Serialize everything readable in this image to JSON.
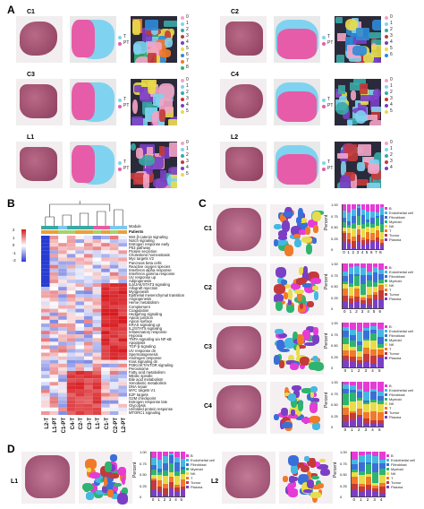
{
  "panels": {
    "A": "A",
    "B": "B",
    "C": "C",
    "D": "D"
  },
  "sampleA": [
    {
      "id": "C1",
      "legend": [
        "0",
        "1",
        "2",
        "3",
        "4",
        "5",
        "6",
        "7",
        "8"
      ]
    },
    {
      "id": "C2",
      "legend": [
        "0",
        "1",
        "2",
        "3",
        "4",
        "5",
        "6"
      ]
    },
    {
      "id": "C3",
      "legend": [
        "0",
        "1",
        "2",
        "3",
        "4",
        "5"
      ]
    },
    {
      "id": "C4",
      "legend": [
        "0",
        "1",
        "2",
        "3",
        "4",
        "5"
      ]
    },
    {
      "id": "L1",
      "legend": [
        "0",
        "1",
        "2",
        "3",
        "4",
        "5"
      ]
    },
    {
      "id": "L2",
      "legend": [
        "0",
        "1",
        "2",
        "3",
        "4"
      ]
    }
  ],
  "tpt": {
    "t": "T",
    "pt": "PT"
  },
  "heatmap": {
    "legend_module": "Module",
    "legend_patients": "Patients",
    "scale": [
      "2",
      "1",
      "0",
      "-1",
      "-2"
    ],
    "columns": [
      "L2-T",
      "L1-PT",
      "C1-PT",
      "C4-T",
      "C2-T",
      "C3-T",
      "L1-T",
      "C1-T",
      "C2-PT",
      "L2-PT"
    ],
    "rows": [
      "Wnt β-catenin signaling",
      "Notch signaling",
      "Estrogen response early",
      "P53 pathway",
      "Protein secretion",
      "Cholesterol homeostasis",
      "Myc targets V2",
      "Pancreas beta cells",
      "Reactive oxygen species",
      "Interferon alpha response",
      "Interferon gamma response",
      "UV response up",
      "Adipogenesis",
      "IL6/JAK/STAT3 signaling",
      "Allograft rejection",
      "Myogenesis",
      "Epithelial mesenchymal transition",
      "Angiogenesis",
      "Heme metabolism",
      "Complement",
      "Coagulation",
      "Hedgehog signaling",
      "Apical junction",
      "Apical surface",
      "KRAS signaling up",
      "IL2/STAT5 signaling",
      "Inflammatory response",
      "Hypoxia",
      "TNFA signaling via NF-κB",
      "Apoptosis",
      "TGF-β signaling",
      "UV response dn",
      "Spermatogenesis",
      "Androgen response",
      "Kras signaling dn",
      "PI3K/AKT/mTOR signaling",
      "Peroxisome",
      "Fatty acid metabolism",
      "Mitotic spindle",
      "Bile acid metabolism",
      "Xenobiotic metabolism",
      "DNA repair",
      "MYC targets V1",
      "E2F targets",
      "G2M checkpoint",
      "Estrogen response late",
      "Glycolysis",
      "Unfolded protein response",
      "MTORC1 signaling"
    ]
  },
  "cellLegend": [
    "B",
    "Endothelial cell",
    "Fibroblast",
    "Myeloid",
    "NK",
    "T",
    "Tumor",
    "Plasma"
  ],
  "cellColors": [
    "#e63bd6",
    "#45b7e3",
    "#3a6fd8",
    "#2eb46f",
    "#e8dc4a",
    "#f07a2a",
    "#c43a3a",
    "#7a3fc4"
  ],
  "percentLabel": "Percent",
  "panelC": [
    {
      "id": "C1",
      "x": [
        "0",
        "1",
        "2",
        "3",
        "4",
        "5",
        "6",
        "7",
        "8"
      ]
    },
    {
      "id": "C2",
      "x": [
        "0",
        "1",
        "2",
        "3",
        "4",
        "5",
        "6"
      ]
    },
    {
      "id": "C3",
      "x": [
        "0",
        "1",
        "2",
        "3",
        "4",
        "5"
      ]
    },
    {
      "id": "C4",
      "x": [
        "0",
        "1",
        "2",
        "3",
        "4",
        "5"
      ]
    }
  ],
  "panelD": [
    {
      "id": "L1",
      "x": [
        "0",
        "1",
        "2",
        "3",
        "4",
        "5"
      ]
    },
    {
      "id": "L2",
      "x": [
        "0",
        "1",
        "2",
        "3",
        "4"
      ]
    }
  ],
  "yticks": [
    "1.00",
    "0.75",
    "0.50",
    "0.25",
    "0"
  ]
}
